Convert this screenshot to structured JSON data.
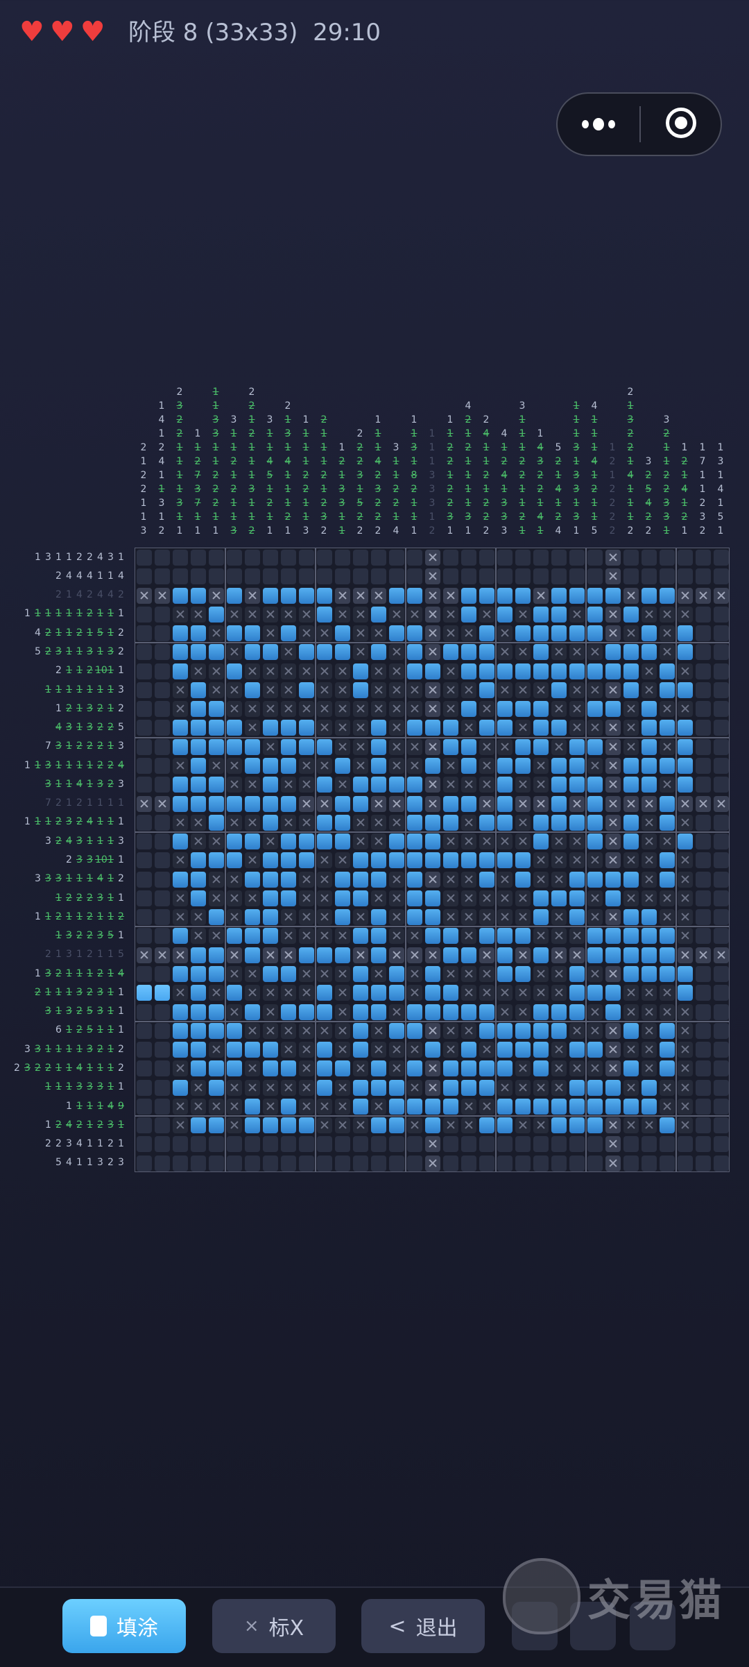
{
  "header": {
    "lives": 3,
    "stage_title": "阶段 8 (33x33)",
    "timer": "29:10"
  },
  "capsule": {
    "more_icon": "more-dots-icon",
    "close_icon": "target-circle-icon"
  },
  "colors": {
    "fill": "#2f7fcc",
    "done_clue": "#4cc26a",
    "heart": "#f03d3d",
    "primary_button": "#3aa5ec"
  },
  "puzzle": {
    "size": 33,
    "column_clues": [
      {
        "tokens": "2 1 2 2 1 1 3"
      },
      {
        "tokens": "1 4 1 2 4 1 1* 3 1 2"
      },
      {
        "tokens": "2 3* 2* 2* 1* 1* 1* 1* 3* 1* 1"
      },
      {
        "tokens": "1 1* 2* 7* 3* 7* 1* 1"
      },
      {
        "tokens": "1* 1* 3* 3* 1* 1* 2* 2* 2* 1* 1"
      },
      {
        "tokens": "3 1* 1* 2* 1* 2* 1* 1* 3*"
      },
      {
        "tokens": "2 2* 1* 2* 1* 1* 1* 3* 1* 1* 2*"
      },
      {
        "tokens": "3 1* 1* 4* 5* 1* 2* 1* 1"
      },
      {
        "tokens": "2 1* 3* 1* 4* 1* 1* 1* 2* 1"
      },
      {
        "tokens": "1 1* 1* 1* 2* 2* 1* 1* 3"
      },
      {
        "tokens": "2* 1* 1* 1* 2* 1* 2* 3* 2"
      },
      {
        "tokens": "1 2* 1* 3* 3* 1* 1*"
      },
      {
        "tokens": "2 2* 2* 3* 1* 5* 2* 2"
      },
      {
        "tokens": "1 1* 1* 4* 2* 3* 2* 2* 2"
      },
      {
        "tokens": "3 1* 1* 2* 2* 1* 4"
      },
      {
        "tokens": "1 1* 3* 1* 8* 2* 1* 1* 1"
      },
      {
        "tokens": "1 1 1 3 3 3 1 2",
        "complete": true
      },
      {
        "tokens": "1 1* 2* 2* 1* 2* 2* 3* 1"
      },
      {
        "tokens": "4 2* 1* 2* 1* 1* 1* 1* 3* 1"
      },
      {
        "tokens": "2 4* 1* 1* 2* 1* 2* 2* 2"
      },
      {
        "tokens": "4 1* 2* 4* 1* 3* 3* 3"
      },
      {
        "tokens": "3 1* 1* 1* 2* 2* 1* 1* 2* 1*"
      },
      {
        "tokens": "1 4* 3* 2* 2* 1* 4* 1*"
      },
      {
        "tokens": "5 2* 1* 4* 1* 2* 4"
      },
      {
        "tokens": "1* 1* 1* 3* 1* 3* 3* 1* 3* 1"
      },
      {
        "tokens": "4 1* 1* 1* 4* 1* 2* 1* 1* 5"
      },
      {
        "tokens": "1 2 1 2 2 2 2",
        "complete": true
      },
      {
        "tokens": "2 1* 3* 2* 2* 1* 4* 1* 1* 1* 2"
      },
      {
        "tokens": "3 2* 5* 4* 2* 2"
      },
      {
        "tokens": "3 2* 1* 1* 2* 2* 3* 3* 1*"
      },
      {
        "tokens": "1 2* 1* 4* 1* 2* 1"
      },
      {
        "tokens": "1 7 1 1 2 3 2"
      },
      {
        "tokens": "1 3 1 4 1 5 1"
      }
    ],
    "row_clues": [
      {
        "tokens": "1 3 1 1 2 2 4 3 1"
      },
      {
        "tokens": "2 4 4 4 1 1 4"
      },
      {
        "tokens": "2 1 4 2 4 4 2",
        "complete": true
      },
      {
        "tokens": "1 1* 1* 1* 1* 1* 2* 1* 1* 1"
      },
      {
        "tokens": "4 2* 1* 1* 2* 1* 5* 1* 2"
      },
      {
        "tokens": "5 2* 3* 1* 1* 3* 1* 3* 2"
      },
      {
        "tokens": "2 1* 1* 2* 10* 1* 1"
      },
      {
        "tokens": "1* 1* 1* 1* 1* 1* 1* 3"
      },
      {
        "tokens": "1 2* 1* 3* 2* 1* 2"
      },
      {
        "tokens": "4* 3* 1* 3* 2* 2* 5"
      },
      {
        "tokens": "7 3* 1* 2* 2* 2* 1* 3"
      },
      {
        "tokens": "1 1* 3* 1* 1* 1* 1* 2* 2* 4*"
      },
      {
        "tokens": "3* 1* 1* 4* 1* 3* 2* 3"
      },
      {
        "tokens": "7 2 1 2 1 1 1 1",
        "complete": true
      },
      {
        "tokens": "1 1* 1* 2* 3* 2* 4* 1* 1* 1"
      },
      {
        "tokens": "3 2* 4* 3* 1* 1* 1* 3"
      },
      {
        "tokens": "2 3* 3* 10* 1* 1"
      },
      {
        "tokens": "3 3* 3* 1* 1* 1* 4* 1* 2"
      },
      {
        "tokens": "1* 2* 2* 2* 3* 1* 1"
      },
      {
        "tokens": "1 1* 2* 1* 1* 2* 1* 1* 2*"
      },
      {
        "tokens": "1* 3* 2* 2* 3* 5* 1"
      },
      {
        "tokens": "2 1 3 1 2 1 1 5",
        "complete": true
      },
      {
        "tokens": "1 3* 2* 1* 1* 1* 2* 1* 4*"
      },
      {
        "tokens": "2* 1* 1* 1* 3* 2* 3* 1* 1"
      },
      {
        "tokens": "3* 1* 3* 2* 5* 3* 1* 1"
      },
      {
        "tokens": "6 1* 2* 5* 1* 1* 1"
      },
      {
        "tokens": "3 3* 1* 1* 1* 1* 3* 2* 1* 2"
      },
      {
        "tokens": "2 3* 2* 2* 1* 1* 4* 1* 1* 1* 2"
      },
      {
        "tokens": "1* 1* 1* 3* 3* 3* 1* 1"
      },
      {
        "tokens": "1 1* 1* 1* 4* 9*"
      },
      {
        "tokens": "1 2* 4* 2* 1* 2* 3* 1*"
      },
      {
        "tokens": "2 2 3 4 1 1 2 1"
      },
      {
        "tokens": "5 4 1 1 3 2 3"
      }
    ],
    "cells": [
      "................x.........x......",
      "................x.........x......",
      "xx##x#x####xxx##xx####x####x##xxx",
      "..xx#xxxxx#xx#xxxx#x#x##x#x#xxx..",
      "..##x##x#xx#xx##xxx#x#####xx#x#..",
      "..###x##x###x#x#x###xx#xxx###x#..",
      "..#xx#xxxxxx#xx##x##########x#x..",
      "..x#xx#xx#xx#xxxxxx#xxx#xxx#x##..",
      "..x##xxxxxxxxxxxxx#x###xx##x#xx..",
      "..####x###xxx#x###x##x##xxxx###..",
      "..#####x###xx#xxx##xx##x##xx#x#..",
      "..x#xx###xx#x#xx#x#x##x##xx####..",
      "..###xx#xx#x####xxxx#xx###x##x#..",
      "xx#######xx##xx#x##x#xx#x#xxx#xxx",
      "..xx#xx#xx##xxx###x##x####x#x#x..",
      "..#xx##x####xx###xxxxx#xx#x#xx#..",
      "..x###x###xx##########xxxxxxx#x..",
      "..##xx###xx###x#xxx#x#xx####x#x..",
      "..x#xxx##xx##xx##xxxxx###x#xxxx..",
      "..xx#x##xxx#x#x##xxxxx#x#xx##xx..",
      "..#xx###xxxx##xx##x###xxx#####x..",
      "xxx##x#xx###x#xxx##x#x#xx#####xxx",
      "..###xx##xxx#x#x#xxx##xx#xx####..",
      "##x#x#xxxx#x###x##xxxxxx###xxx#..",
      "..###x#x###x##x#####xx###x#xxxx..",
      "..####xxxxxx#x##xxx#####xxx#x#x..",
      "..##x###xx#x#xxx#x#x###x##xxx#x..",
      "..x###x##x##x#x#x####x#xxxx#x#x..",
      "..#x#xxxxx#x###xx###xxxx###x#xx..",
      "..xxxx#x#xxx#x####xx#########xx..",
      "..x##x####xxx##x#xx##xx###xxx#x..",
      "................x.........x......",
      "................x.........x......"
    ],
    "highlight_row": 23
  },
  "toolbar": {
    "fill_label": "填涂",
    "mark_label": "标X",
    "mark_icon": "×",
    "exit_label": "退出",
    "exit_icon": "<"
  },
  "watermark": "交易猫"
}
